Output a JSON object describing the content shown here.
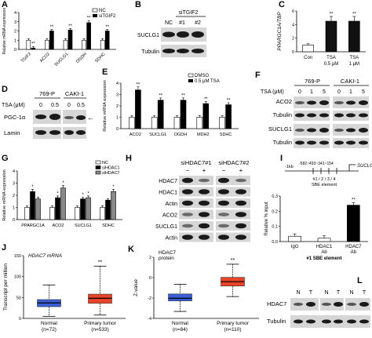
{
  "panels": {
    "A": {
      "label": "A",
      "ylabel": "Relative mRNA expression",
      "legend": [
        "NC",
        "siTGIF2"
      ],
      "chart_data": {
        "type": "bar",
        "categories": [
          "TGIF2",
          "ACO2",
          "SUCLG1",
          "OGDH",
          "SDHC"
        ],
        "series": [
          {
            "name": "NC",
            "values": [
              1.0,
              1.0,
              1.0,
              1.0,
              1.0
            ]
          },
          {
            "name": "siTGIF2",
            "values": [
              0.15,
              2.0,
              2.1,
              2.9,
              2.0
            ]
          }
        ],
        "ylim": [
          0,
          4
        ],
        "yticks": [
          "0",
          "1",
          "2",
          "3",
          "4"
        ],
        "stars": [
          "**",
          "**",
          "**",
          "**",
          "**"
        ]
      }
    },
    "B": {
      "label": "B",
      "header": "siTGIF2",
      "lanes": [
        "NC",
        "#1",
        "#2"
      ],
      "rows": [
        "SUCLG1",
        "Tubulin"
      ]
    },
    "C": {
      "label": "C",
      "ylabel": "PPARGC1A/TBP",
      "chart_data": {
        "type": "bar",
        "categories": [
          "Con",
          "TSA 0.5 μM",
          "TSA 1 μM"
        ],
        "cat_line1": [
          "Con",
          "TSA",
          "TSA"
        ],
        "cat_line2": [
          "",
          "0.5 μM",
          "1 μM"
        ],
        "values": [
          1.0,
          4.5,
          4.5
        ],
        "ylim": [
          0,
          6
        ],
        "yticks": [
          "0",
          "2",
          "4",
          "6"
        ],
        "stars": [
          "",
          "**",
          "**"
        ]
      }
    },
    "D": {
      "label": "D",
      "cell_lines": [
        "769-P",
        "CAKI-1"
      ],
      "tsa_label": "TSA (μM)",
      "doses": [
        "0",
        "0.5",
        "0",
        "0.5"
      ],
      "rows": [
        "PGC-1α",
        "Lamin"
      ],
      "arrow": "←"
    },
    "E": {
      "label": "E",
      "ylabel": "Relative mRNA expression",
      "legend": [
        "DMSO",
        "0.5 μM TSA"
      ],
      "chart_data": {
        "type": "bar",
        "categories": [
          "ACO2",
          "SUCLG1",
          "OGDH",
          "MDH2",
          "SDHC"
        ],
        "series": [
          {
            "name": "DMSO",
            "values": [
              1.0,
              1.0,
              1.0,
              1.0,
              1.0
            ]
          },
          {
            "name": "0.5 μM TSA",
            "values": [
              3.4,
              2.5,
              2.5,
              2.2,
              2.1
            ]
          }
        ],
        "ylim": [
          0,
          4
        ],
        "yticks": [
          "0",
          "1",
          "2",
          "3",
          "4"
        ],
        "stars": [
          "**",
          "**",
          "**",
          "**",
          "**"
        ]
      }
    },
    "F": {
      "label": "F",
      "cell_lines": [
        "769-P",
        "CAKI-1"
      ],
      "tsa_label": "TSA (μM)",
      "doses": [
        "0",
        "1",
        "5",
        "0",
        "1",
        "5"
      ],
      "rows": [
        "ACO2",
        "Tubulin",
        "SUCLG1",
        "Tubulin"
      ]
    },
    "G": {
      "label": "G",
      "ylabel": "Relative mRNA expression",
      "legend": [
        "NC",
        "siHDAC1",
        "siHDAC7"
      ],
      "chart_data": {
        "type": "bar",
        "categories": [
          "PPARGC1A",
          "ACO2",
          "SUCLG1",
          "SDHC"
        ],
        "series": [
          {
            "name": "NC",
            "values": [
              1.0,
              1.0,
              1.0,
              1.0
            ]
          },
          {
            "name": "siHDAC1",
            "values": [
              2.3,
              1.8,
              1.7,
              1.6
            ]
          },
          {
            "name": "siHDAC7",
            "values": [
              1.7,
              2.6,
              1.8,
              2.3
            ]
          }
        ],
        "ylim": [
          0,
          4
        ],
        "yticks": [
          "0",
          "1",
          "2",
          "3",
          "4"
        ],
        "stars": [
          [
            "",
            "*",
            ""
          ],
          [
            "",
            "*",
            "*"
          ],
          [
            "",
            "*",
            "*"
          ],
          [
            "",
            "",
            "*"
          ]
        ]
      }
    },
    "H": {
      "label": "H",
      "headers": [
        "siHDAC7#1",
        "siHDAC7#2"
      ],
      "signs": [
        "−",
        "+",
        "−",
        "+"
      ],
      "rows": [
        "HDAC7",
        "HDAC1",
        "Actin",
        "ACO2",
        "SUCLG1",
        "Actin"
      ]
    },
    "I": {
      "label": "I",
      "ylabel": "Relative % input",
      "tss": "-1kb",
      "positions": "-582~493~341~154",
      "sites": "#1 / 2 / 3 / 4",
      "element": "SBE element",
      "gene": "SUCLG1",
      "xnote": "#1 SBE element",
      "chart_data": {
        "type": "bar",
        "categories": [
          "IgG",
          "HDAC1 Ab",
          "HDAC7 Ab"
        ],
        "cat_line1": [
          "IgG",
          "HDAC1",
          "HDAC7"
        ],
        "cat_line2": [
          "",
          "Ab",
          "Ab"
        ],
        "values": [
          0.035,
          0.022,
          0.24
        ],
        "ylim": [
          0,
          0.3
        ],
        "yticks": [
          "0.0",
          "0.1",
          "0.2",
          "0.3"
        ],
        "stars": [
          "",
          "",
          "**"
        ]
      }
    },
    "J": {
      "label": "J",
      "ylabel": "Transcript per million",
      "subtitle": "HDAC7 mRNA",
      "chart_data": {
        "type": "box",
        "categories": [
          "Normal",
          "Primary tumor"
        ],
        "n": [
          "(n=72)",
          "(n=533)"
        ],
        "boxes": [
          {
            "min": 5,
            "q1": 28,
            "median": 37,
            "q3": 45,
            "max": 80
          },
          {
            "min": 8,
            "q1": 36,
            "median": 48,
            "q3": 58,
            "max": 125
          }
        ],
        "ylim": [
          0,
          150
        ],
        "yticks": [
          "0",
          "50",
          "100",
          "150"
        ],
        "stars": [
          "",
          "**"
        ]
      }
    },
    "K": {
      "label": "K",
      "ylabel": "Z-value",
      "subtitle_line1": "HDAC7",
      "subtitle_line2": "protein",
      "chart_data": {
        "type": "box",
        "categories": [
          "Normal",
          "Primary tumor"
        ],
        "n": [
          "(n=84)",
          "(n=110)"
        ],
        "boxes": [
          {
            "min": -3.2,
            "q1": -2.0,
            "median": -1.7,
            "q3": -1.2,
            "max": -0.1
          },
          {
            "min": -1.5,
            "q1": -0.3,
            "median": 0.2,
            "q3": 0.7,
            "max": 2.2
          }
        ],
        "ylim": [
          -4,
          3
        ],
        "yticks": [
          "-4",
          "-2",
          "0",
          "2"
        ],
        "stars": [
          "",
          "**"
        ]
      }
    },
    "L": {
      "label": "L",
      "lanes": [
        "N",
        "T",
        "N",
        "T",
        "N",
        "T"
      ],
      "rows": [
        "HDAC7",
        "Tubulin"
      ]
    }
  }
}
